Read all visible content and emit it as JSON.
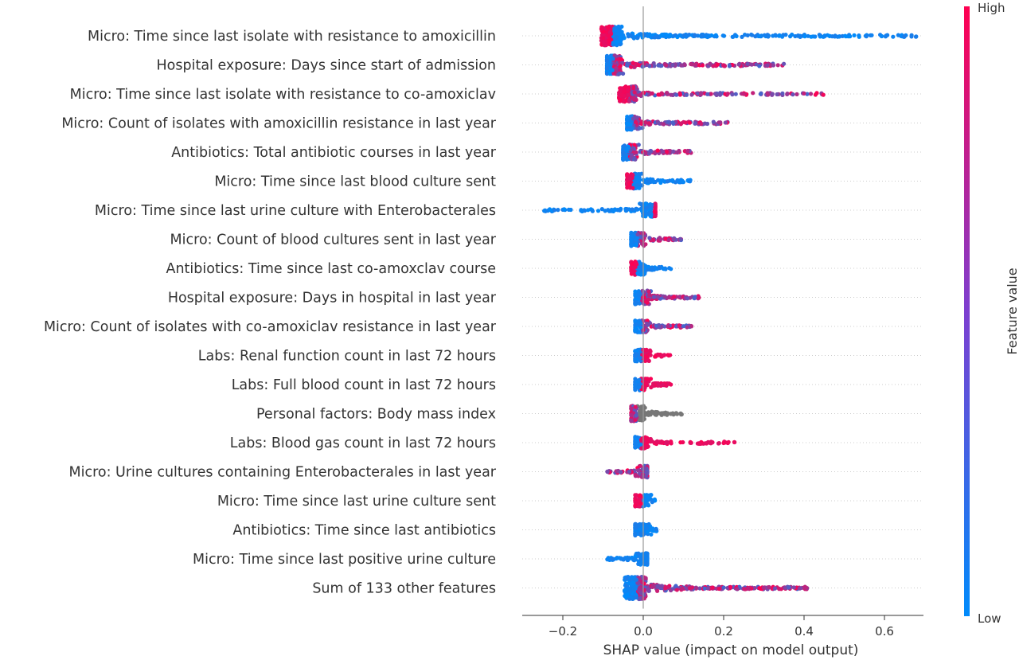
{
  "chart_data": {
    "type": "scatter",
    "subtype": "shap-beeswarm",
    "xlabel": "SHAP value (impact on model output)",
    "x_ticks": [
      "−0.2",
      "0.0",
      "0.2",
      "0.4",
      "0.6"
    ],
    "x_tick_values": [
      -0.2,
      0.0,
      0.2,
      0.4,
      0.6
    ],
    "xlim": [
      -0.3,
      0.72
    ],
    "zero_line": 0.0,
    "colorbar": {
      "label": "Feature value",
      "high": "High",
      "low": "Low",
      "color_high": "#ff0051",
      "color_low": "#008bfb"
    },
    "features": [
      {
        "name": "Micro: Time since last isolate with resistance to amoxicillin",
        "min": -0.11,
        "max": 0.69,
        "core": -0.08,
        "left_color": "high",
        "right_color": "low",
        "density": 1.0,
        "spread": 0.8
      },
      {
        "name": "Hospital exposure: Days since start of admission",
        "min": -0.09,
        "max": 0.35,
        "core": -0.08,
        "left_color": "low",
        "right_color": "mixed",
        "density": 1.0,
        "spread": 0.8
      },
      {
        "name": "Micro: Time since last isolate with resistance to co-amoxiclav",
        "min": -0.06,
        "max": 0.45,
        "core": -0.04,
        "left_color": "high",
        "right_color": "mixed",
        "density": 0.8,
        "spread": 0.6
      },
      {
        "name": "Micro: Count of  isolates with amoxicillin resistance in last year",
        "min": -0.04,
        "max": 0.21,
        "core": -0.03,
        "left_color": "low",
        "right_color": "mixed",
        "density": 0.7,
        "spread": 0.5
      },
      {
        "name": "Antibiotics: Total antibiotic courses in last year",
        "min": -0.05,
        "max": 0.13,
        "core": -0.04,
        "left_color": "low",
        "right_color": "mixed",
        "density": 0.8,
        "spread": 0.6
      },
      {
        "name": "Micro: Time since last blood culture sent",
        "min": -0.04,
        "max": 0.12,
        "core": -0.03,
        "left_color": "high",
        "right_color": "low",
        "density": 0.8,
        "spread": 0.6
      },
      {
        "name": "Micro: Time since last urine culture with Enterobacterales",
        "min": -0.25,
        "max": 0.03,
        "core": 0.02,
        "left_color": "low",
        "right_color": "high",
        "density": 0.7,
        "spread": 0.5
      },
      {
        "name": "Micro: Count of blood cultures sent in last year",
        "min": -0.03,
        "max": 0.1,
        "core": -0.02,
        "left_color": "low",
        "right_color": "mixed",
        "density": 0.6,
        "spread": 0.5
      },
      {
        "name": "Antibiotics: Time since last co-amoxclav course",
        "min": -0.03,
        "max": 0.07,
        "core": -0.02,
        "left_color": "high",
        "right_color": "low",
        "density": 0.6,
        "spread": 0.5
      },
      {
        "name": "Hospital exposure: Days in hospital in last year",
        "min": -0.02,
        "max": 0.14,
        "core": -0.01,
        "left_color": "low",
        "right_color": "mixed",
        "density": 0.6,
        "spread": 0.5
      },
      {
        "name": "Micro: Count of  isolates with co-amoxiclav resistance in last year",
        "min": -0.02,
        "max": 0.12,
        "core": -0.01,
        "left_color": "low",
        "right_color": "mixed",
        "density": 0.5,
        "spread": 0.4
      },
      {
        "name": "Labs: Renal function count in last 72 hours",
        "min": -0.02,
        "max": 0.07,
        "core": -0.01,
        "left_color": "low",
        "right_color": "high",
        "density": 0.5,
        "spread": 0.4
      },
      {
        "name": "Labs: Full blood count in last 72 hours",
        "min": -0.02,
        "max": 0.07,
        "core": -0.01,
        "left_color": "low",
        "right_color": "high",
        "density": 0.5,
        "spread": 0.4
      },
      {
        "name": "Personal factors: Body mass index",
        "min": -0.03,
        "max": 0.1,
        "core": -0.02,
        "left_color": "mixed",
        "right_color": "gray",
        "density": 0.6,
        "spread": 0.6
      },
      {
        "name": "Labs: Blood gas count in last 72 hours",
        "min": -0.02,
        "max": 0.23,
        "core": -0.01,
        "left_color": "low",
        "right_color": "high",
        "density": 0.5,
        "spread": 0.4
      },
      {
        "name": "Micro: Urine cultures containing Enterobacterales in last year",
        "min": -0.09,
        "max": 0.01,
        "core": 0.01,
        "left_color": "mixed",
        "right_color": "low",
        "density": 0.5,
        "spread": 0.4
      },
      {
        "name": "Micro: Time since last urine culture sent",
        "min": -0.02,
        "max": 0.03,
        "core": -0.01,
        "left_color": "high",
        "right_color": "low",
        "density": 0.5,
        "spread": 0.4
      },
      {
        "name": "Antibiotics: Time since last antibiotics",
        "min": -0.02,
        "max": 0.04,
        "core": -0.01,
        "left_color": "low",
        "right_color": "low",
        "density": 0.5,
        "spread": 0.4
      },
      {
        "name": "Micro: Time since last positive urine culture",
        "min": -0.09,
        "max": 0.01,
        "core": 0.01,
        "left_color": "low",
        "right_color": "high",
        "density": 0.5,
        "spread": 0.4
      },
      {
        "name": "Sum of 133 other features",
        "min": -0.16,
        "max": 0.41,
        "core": -0.02,
        "left_color": "low",
        "right_color": "mixed",
        "density": 1.4,
        "spread": 1.0
      }
    ]
  }
}
